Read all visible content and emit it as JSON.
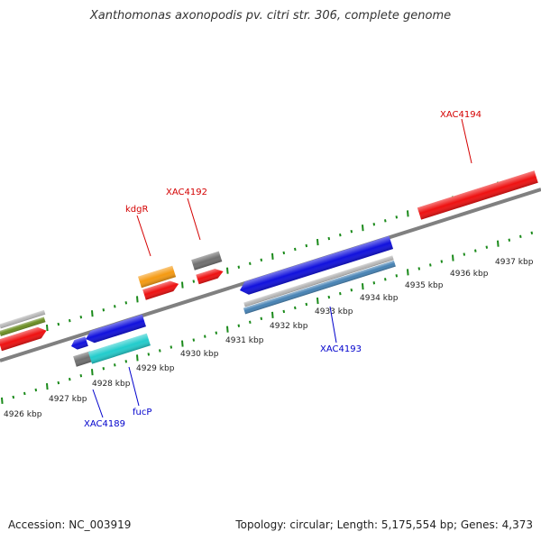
{
  "title": "Xanthomonas axonopodis pv. citri str. 306, complete genome",
  "footer": {
    "accession": "Accession: NC_003919",
    "summary": "Topology: circular; Length: 5,175,554 bp; Genes: 4,373"
  },
  "colors": {
    "backbone": "#808080",
    "ticks": "#1a8a1a",
    "forward_label": "#d40000",
    "reverse_label": "#0000cc",
    "red": "#ee1111",
    "blue": "#1111dd",
    "cyan": "#22cccc",
    "orange": "#f59a12",
    "gray": "#707070",
    "olive": "#6b8e23",
    "silver": "#b8b8b8",
    "steel": "#4682b4"
  },
  "axis": {
    "unit": "kbp",
    "tick_labels": [
      "4926 kbp",
      "4927 kbp",
      "4928 kbp",
      "4929 kbp",
      "4930 kbp",
      "4931 kbp",
      "4932 kbp",
      "4933 kbp",
      "4934 kbp",
      "4935 kbp",
      "4936 kbp",
      "4937 kbp"
    ]
  },
  "gene_labels": [
    {
      "name": "XAC4194",
      "strand": "forward"
    },
    {
      "name": "XAC4192",
      "strand": "forward"
    },
    {
      "name": "kdgR",
      "strand": "forward"
    },
    {
      "name": "XAC4193",
      "strand": "reverse"
    },
    {
      "name": "fucP",
      "strand": "reverse"
    },
    {
      "name": "XAC4189",
      "strand": "reverse"
    }
  ]
}
